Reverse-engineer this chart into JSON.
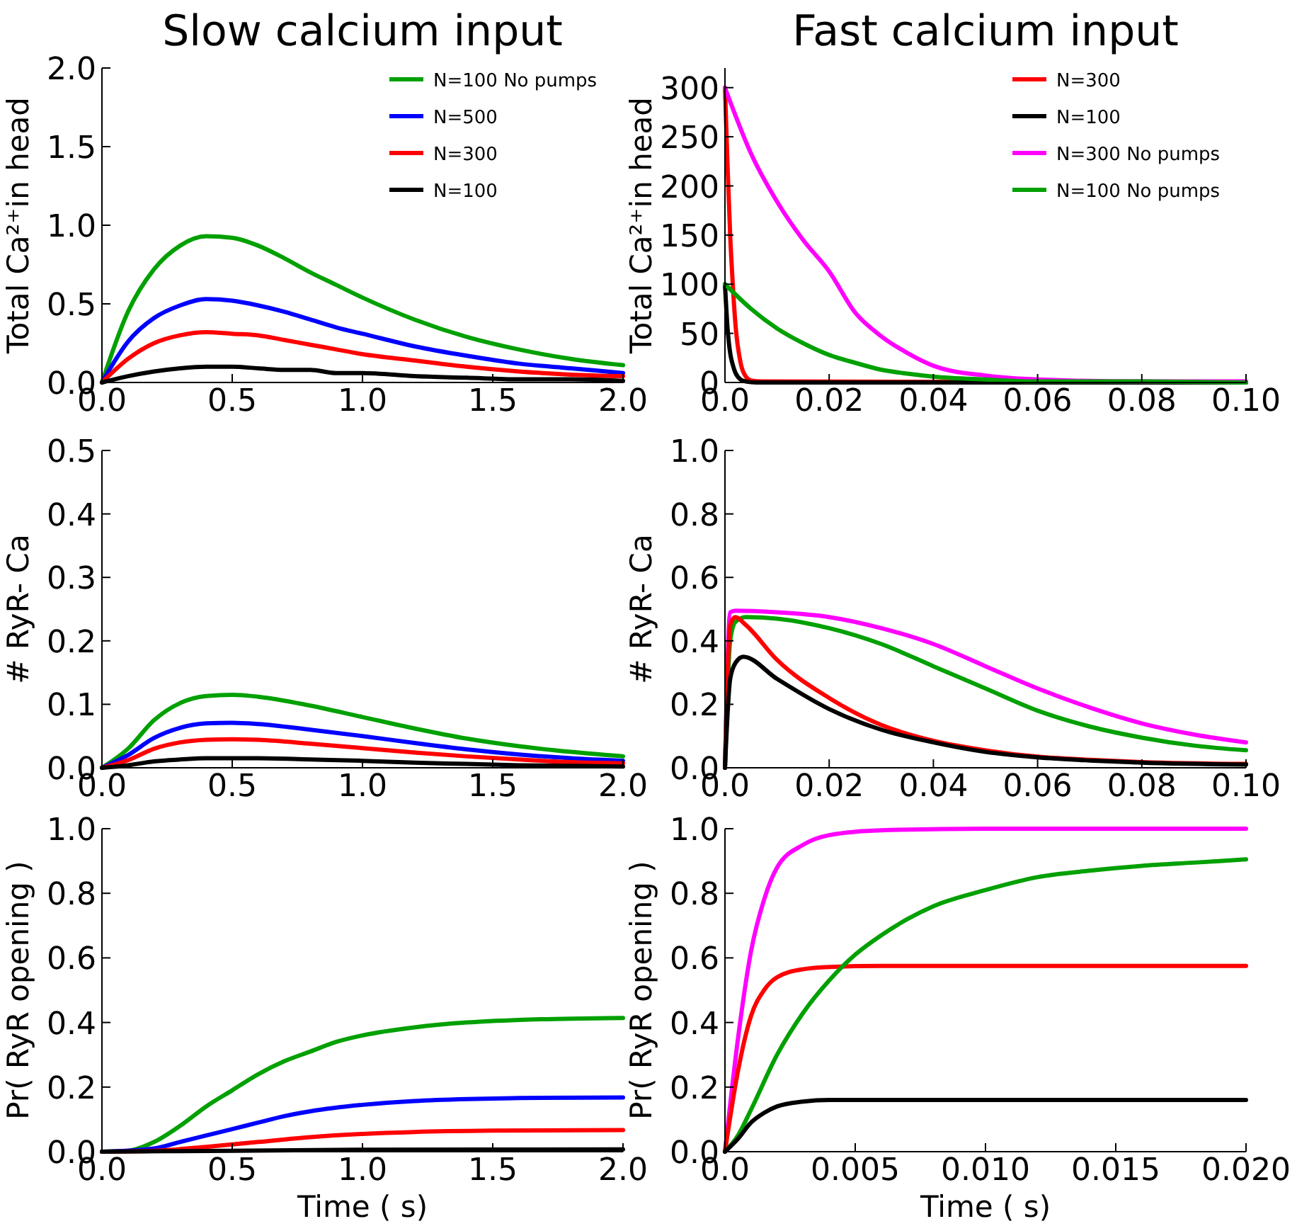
{
  "chart_data": [
    {
      "type": "line",
      "title": "Slow calcium input",
      "ylabel": "Total Ca²⁺in head",
      "legend": "top right",
      "xlim": [
        0,
        2
      ],
      "ylim": [
        0,
        2
      ],
      "xticks": [
        {
          "value": 0,
          "label": "0.0"
        },
        0.5,
        {
          "value": 1,
          "label": "1.0"
        },
        1.5,
        {
          "value": 2,
          "label": "2.0"
        }
      ],
      "yticks": [
        {
          "value": 0,
          "label": "0.0"
        },
        0.5,
        {
          "value": 1,
          "label": "1.0"
        },
        1.5,
        {
          "value": 2,
          "label": "2.0"
        }
      ],
      "x": [
        0,
        0.1,
        0.2,
        0.3,
        0.4,
        0.5,
        0.6,
        0.7,
        0.8,
        0.9,
        1.0,
        1.2,
        1.4,
        1.6,
        1.8,
        2.0
      ],
      "series": [
        {
          "name": "N=100 No pumps",
          "color": "#00a000",
          "values": [
            0,
            0.45,
            0.72,
            0.87,
            0.93,
            0.92,
            0.87,
            0.79,
            0.7,
            0.62,
            0.54,
            0.4,
            0.29,
            0.21,
            0.15,
            0.11
          ]
        },
        {
          "name": "N=500",
          "color": "#0000ff",
          "values": [
            0,
            0.26,
            0.41,
            0.49,
            0.53,
            0.52,
            0.49,
            0.45,
            0.4,
            0.35,
            0.31,
            0.23,
            0.17,
            0.12,
            0.09,
            0.06
          ]
        },
        {
          "name": "N=300",
          "color": "#ff0000",
          "values": [
            0,
            0.15,
            0.25,
            0.3,
            0.32,
            0.31,
            0.3,
            0.27,
            0.24,
            0.21,
            0.18,
            0.14,
            0.1,
            0.07,
            0.05,
            0.04
          ]
        },
        {
          "name": "N=100",
          "color": "#000000",
          "values": [
            0,
            0.04,
            0.07,
            0.09,
            0.1,
            0.1,
            0.09,
            0.08,
            0.08,
            0.06,
            0.06,
            0.04,
            0.03,
            0.02,
            0.02,
            0.01
          ]
        }
      ]
    },
    {
      "type": "line",
      "title": "Fast calcium input",
      "ylabel": "Total Ca²⁺in head",
      "legend": "top right",
      "xlim": [
        0,
        0.1
      ],
      "ylim": [
        0,
        320
      ],
      "xticks": [
        {
          "value": 0,
          "label": "0.0"
        },
        0.02,
        0.04,
        0.06,
        0.08,
        {
          "value": 0.1,
          "label": "0.10"
        }
      ],
      "yticks": [
        0,
        50,
        100,
        150,
        200,
        250,
        300
      ],
      "series": [
        {
          "name": "N=300",
          "color": "#ff0000",
          "x": [
            0,
            0.0005,
            0.001,
            0.0015,
            0.002,
            0.003,
            0.004,
            0.005,
            0.007,
            0.1
          ],
          "values": [
            300,
            220,
            150,
            100,
            60,
            20,
            6,
            2,
            1,
            0
          ]
        },
        {
          "name": "N=100",
          "color": "#000000",
          "x": [
            0,
            0.0005,
            0.001,
            0.0015,
            0.002,
            0.003,
            0.004,
            0.006,
            0.1
          ],
          "values": [
            100,
            55,
            30,
            18,
            10,
            3,
            1,
            0,
            0
          ]
        },
        {
          "name": "N=300 No pumps",
          "color": "#ff00ff",
          "x": [
            0,
            0.005,
            0.01,
            0.015,
            0.02,
            0.025,
            0.03,
            0.035,
            0.04,
            0.05,
            0.06,
            0.08,
            0.1
          ],
          "values": [
            300,
            233,
            184,
            145,
            113,
            71,
            47,
            30,
            17,
            7,
            3,
            1,
            1
          ]
        },
        {
          "name": "N=100 No pumps",
          "color": "#00a000",
          "x": [
            0,
            0.005,
            0.01,
            0.015,
            0.02,
            0.025,
            0.03,
            0.035,
            0.04,
            0.05,
            0.06,
            0.08,
            0.1
          ],
          "values": [
            100,
            75,
            55,
            40,
            28,
            20,
            13,
            9,
            6,
            3,
            1,
            1,
            0
          ]
        }
      ]
    },
    {
      "type": "line",
      "ylabel": "# RyR- Ca",
      "xlim": [
        0,
        2
      ],
      "ylim": [
        0,
        0.5
      ],
      "xticks": [
        {
          "value": 0,
          "label": "0.0"
        },
        0.5,
        {
          "value": 1,
          "label": "1.0"
        },
        1.5,
        {
          "value": 2,
          "label": "2.0"
        }
      ],
      "yticks": [
        {
          "value": 0,
          "label": "0.0"
        },
        0.1,
        0.2,
        0.3,
        0.4,
        0.5
      ],
      "x": [
        0,
        0.1,
        0.2,
        0.3,
        0.4,
        0.5,
        0.6,
        0.8,
        1.0,
        1.2,
        1.4,
        1.6,
        1.8,
        2.0
      ],
      "series": [
        {
          "color": "#00a000",
          "values": [
            0,
            0.03,
            0.075,
            0.102,
            0.113,
            0.115,
            0.112,
            0.098,
            0.08,
            0.062,
            0.046,
            0.034,
            0.025,
            0.018
          ]
        },
        {
          "color": "#0000ff",
          "values": [
            0,
            0.02,
            0.047,
            0.063,
            0.07,
            0.071,
            0.069,
            0.06,
            0.05,
            0.039,
            0.029,
            0.021,
            0.015,
            0.011
          ]
        },
        {
          "color": "#ff0000",
          "values": [
            0,
            0.012,
            0.03,
            0.04,
            0.044,
            0.045,
            0.044,
            0.038,
            0.031,
            0.024,
            0.018,
            0.013,
            0.009,
            0.007
          ]
        },
        {
          "color": "#000000",
          "values": [
            0,
            0.004,
            0.01,
            0.013,
            0.015,
            0.015,
            0.015,
            0.013,
            0.011,
            0.008,
            0.006,
            0.004,
            0.003,
            0.002
          ]
        }
      ]
    },
    {
      "type": "line",
      "ylabel": "# RyR- Ca",
      "xlim": [
        0,
        0.1
      ],
      "ylim": [
        0,
        1
      ],
      "xticks": [
        {
          "value": 0,
          "label": "0.0"
        },
        0.02,
        0.04,
        0.06,
        0.08,
        {
          "value": 0.1,
          "label": "0.10"
        }
      ],
      "yticks": [
        {
          "value": 0,
          "label": "0.0"
        },
        0.2,
        0.4,
        0.6,
        0.8,
        {
          "value": 1,
          "label": "1.0"
        }
      ],
      "series": [
        {
          "color": "#ff00ff",
          "x": [
            0,
            0.001,
            0.002,
            0.01,
            0.02,
            0.03,
            0.04,
            0.05,
            0.06,
            0.07,
            0.08,
            0.09,
            0.1
          ],
          "values": [
            0,
            0.49,
            0.495,
            0.49,
            0.475,
            0.44,
            0.39,
            0.32,
            0.25,
            0.19,
            0.14,
            0.105,
            0.08
          ]
        },
        {
          "color": "#00a000",
          "x": [
            0,
            0.001,
            0.002,
            0.004,
            0.01,
            0.02,
            0.03,
            0.04,
            0.05,
            0.06,
            0.07,
            0.08,
            0.09,
            0.1
          ],
          "values": [
            0,
            0.4,
            0.46,
            0.475,
            0.47,
            0.44,
            0.39,
            0.32,
            0.25,
            0.18,
            0.13,
            0.095,
            0.07,
            0.055
          ]
        },
        {
          "color": "#ff0000",
          "x": [
            0,
            0.001,
            0.002,
            0.004,
            0.01,
            0.02,
            0.03,
            0.04,
            0.05,
            0.06,
            0.07,
            0.08,
            0.1
          ],
          "values": [
            0,
            0.45,
            0.475,
            0.45,
            0.34,
            0.22,
            0.135,
            0.085,
            0.055,
            0.035,
            0.025,
            0.018,
            0.012
          ]
        },
        {
          "color": "#000000",
          "x": [
            0,
            0.001,
            0.002,
            0.0035,
            0.01,
            0.02,
            0.03,
            0.04,
            0.05,
            0.06,
            0.07,
            0.08,
            0.1
          ],
          "values": [
            0,
            0.28,
            0.33,
            0.35,
            0.28,
            0.185,
            0.12,
            0.08,
            0.05,
            0.033,
            0.023,
            0.016,
            0.01
          ]
        }
      ]
    },
    {
      "type": "line",
      "xlabel": "Time ( s)",
      "ylabel": "Pr( RyR opening )",
      "xlim": [
        0,
        2
      ],
      "ylim": [
        0,
        1
      ],
      "xticks": [
        {
          "value": 0,
          "label": "0.0"
        },
        0.5,
        {
          "value": 1,
          "label": "1.0"
        },
        1.5,
        {
          "value": 2,
          "label": "2.0"
        }
      ],
      "yticks": [
        {
          "value": 0,
          "label": "0.0"
        },
        0.2,
        0.4,
        0.6,
        0.8,
        {
          "value": 1,
          "label": "1.0"
        }
      ],
      "series": [
        {
          "color": "#00a000",
          "x": [
            0,
            0.1,
            0.2,
            0.3,
            0.4,
            0.5,
            0.6,
            0.7,
            0.8,
            0.9,
            1.0,
            1.2,
            1.4,
            1.6,
            1.8,
            2.0
          ],
          "values": [
            0,
            0.003,
            0.03,
            0.08,
            0.14,
            0.19,
            0.24,
            0.28,
            0.31,
            0.34,
            0.36,
            0.385,
            0.4,
            0.408,
            0.412,
            0.414
          ]
        },
        {
          "color": "#0000ff",
          "x": [
            0,
            0.2,
            0.3,
            0.4,
            0.5,
            0.6,
            0.7,
            0.8,
            1.0,
            1.2,
            1.4,
            1.6,
            2.0
          ],
          "values": [
            0,
            0.01,
            0.03,
            0.05,
            0.07,
            0.09,
            0.11,
            0.125,
            0.145,
            0.157,
            0.163,
            0.166,
            0.168
          ]
        },
        {
          "color": "#ff0000",
          "x": [
            0,
            0.2,
            0.4,
            0.6,
            0.8,
            1.0,
            1.2,
            1.5,
            2.0
          ],
          "values": [
            0,
            0.003,
            0.015,
            0.03,
            0.045,
            0.055,
            0.061,
            0.065,
            0.067
          ]
        },
        {
          "color": "#000000",
          "x": [
            0,
            0.5,
            1.0,
            2.0
          ],
          "values": [
            0,
            0.003,
            0.006,
            0.007
          ]
        }
      ]
    },
    {
      "type": "line",
      "xlabel": "Time ( s)",
      "ylabel": "Pr( RyR opening )",
      "xlim": [
        0,
        0.02
      ],
      "ylim": [
        0,
        1
      ],
      "xticks": [
        {
          "value": 0,
          "label": "0.0"
        },
        0.005,
        {
          "value": 0.01,
          "label": "0.010"
        },
        0.015,
        {
          "value": 0.02,
          "label": "0.020"
        }
      ],
      "yticks": [
        {
          "value": 0,
          "label": "0.0"
        },
        0.2,
        0.4,
        0.6,
        0.8,
        {
          "value": 1,
          "label": "1.0"
        }
      ],
      "series": [
        {
          "color": "#ff00ff",
          "x": [
            0,
            0.0005,
            0.001,
            0.0015,
            0.002,
            0.003,
            0.004,
            0.006,
            0.01,
            0.02
          ],
          "values": [
            0,
            0.35,
            0.62,
            0.78,
            0.88,
            0.95,
            0.98,
            0.995,
            1,
            1
          ]
        },
        {
          "color": "#ff0000",
          "x": [
            0,
            0.0005,
            0.001,
            0.0015,
            0.002,
            0.003,
            0.004,
            0.006,
            0.02
          ],
          "values": [
            0,
            0.25,
            0.42,
            0.5,
            0.54,
            0.565,
            0.572,
            0.575,
            0.575
          ]
        },
        {
          "color": "#00a000",
          "x": [
            0,
            0.0005,
            0.001,
            0.002,
            0.003,
            0.004,
            0.005,
            0.006,
            0.007,
            0.008,
            0.01,
            0.012,
            0.014,
            0.016,
            0.018,
            0.02
          ],
          "values": [
            0,
            0.05,
            0.13,
            0.3,
            0.43,
            0.53,
            0.61,
            0.67,
            0.72,
            0.76,
            0.81,
            0.85,
            0.87,
            0.885,
            0.895,
            0.905
          ]
        },
        {
          "color": "#000000",
          "x": [
            0,
            0.0005,
            0.001,
            0.0015,
            0.002,
            0.003,
            0.004,
            0.02
          ],
          "values": [
            0,
            0.04,
            0.09,
            0.12,
            0.14,
            0.155,
            0.16,
            0.16
          ]
        }
      ]
    }
  ]
}
